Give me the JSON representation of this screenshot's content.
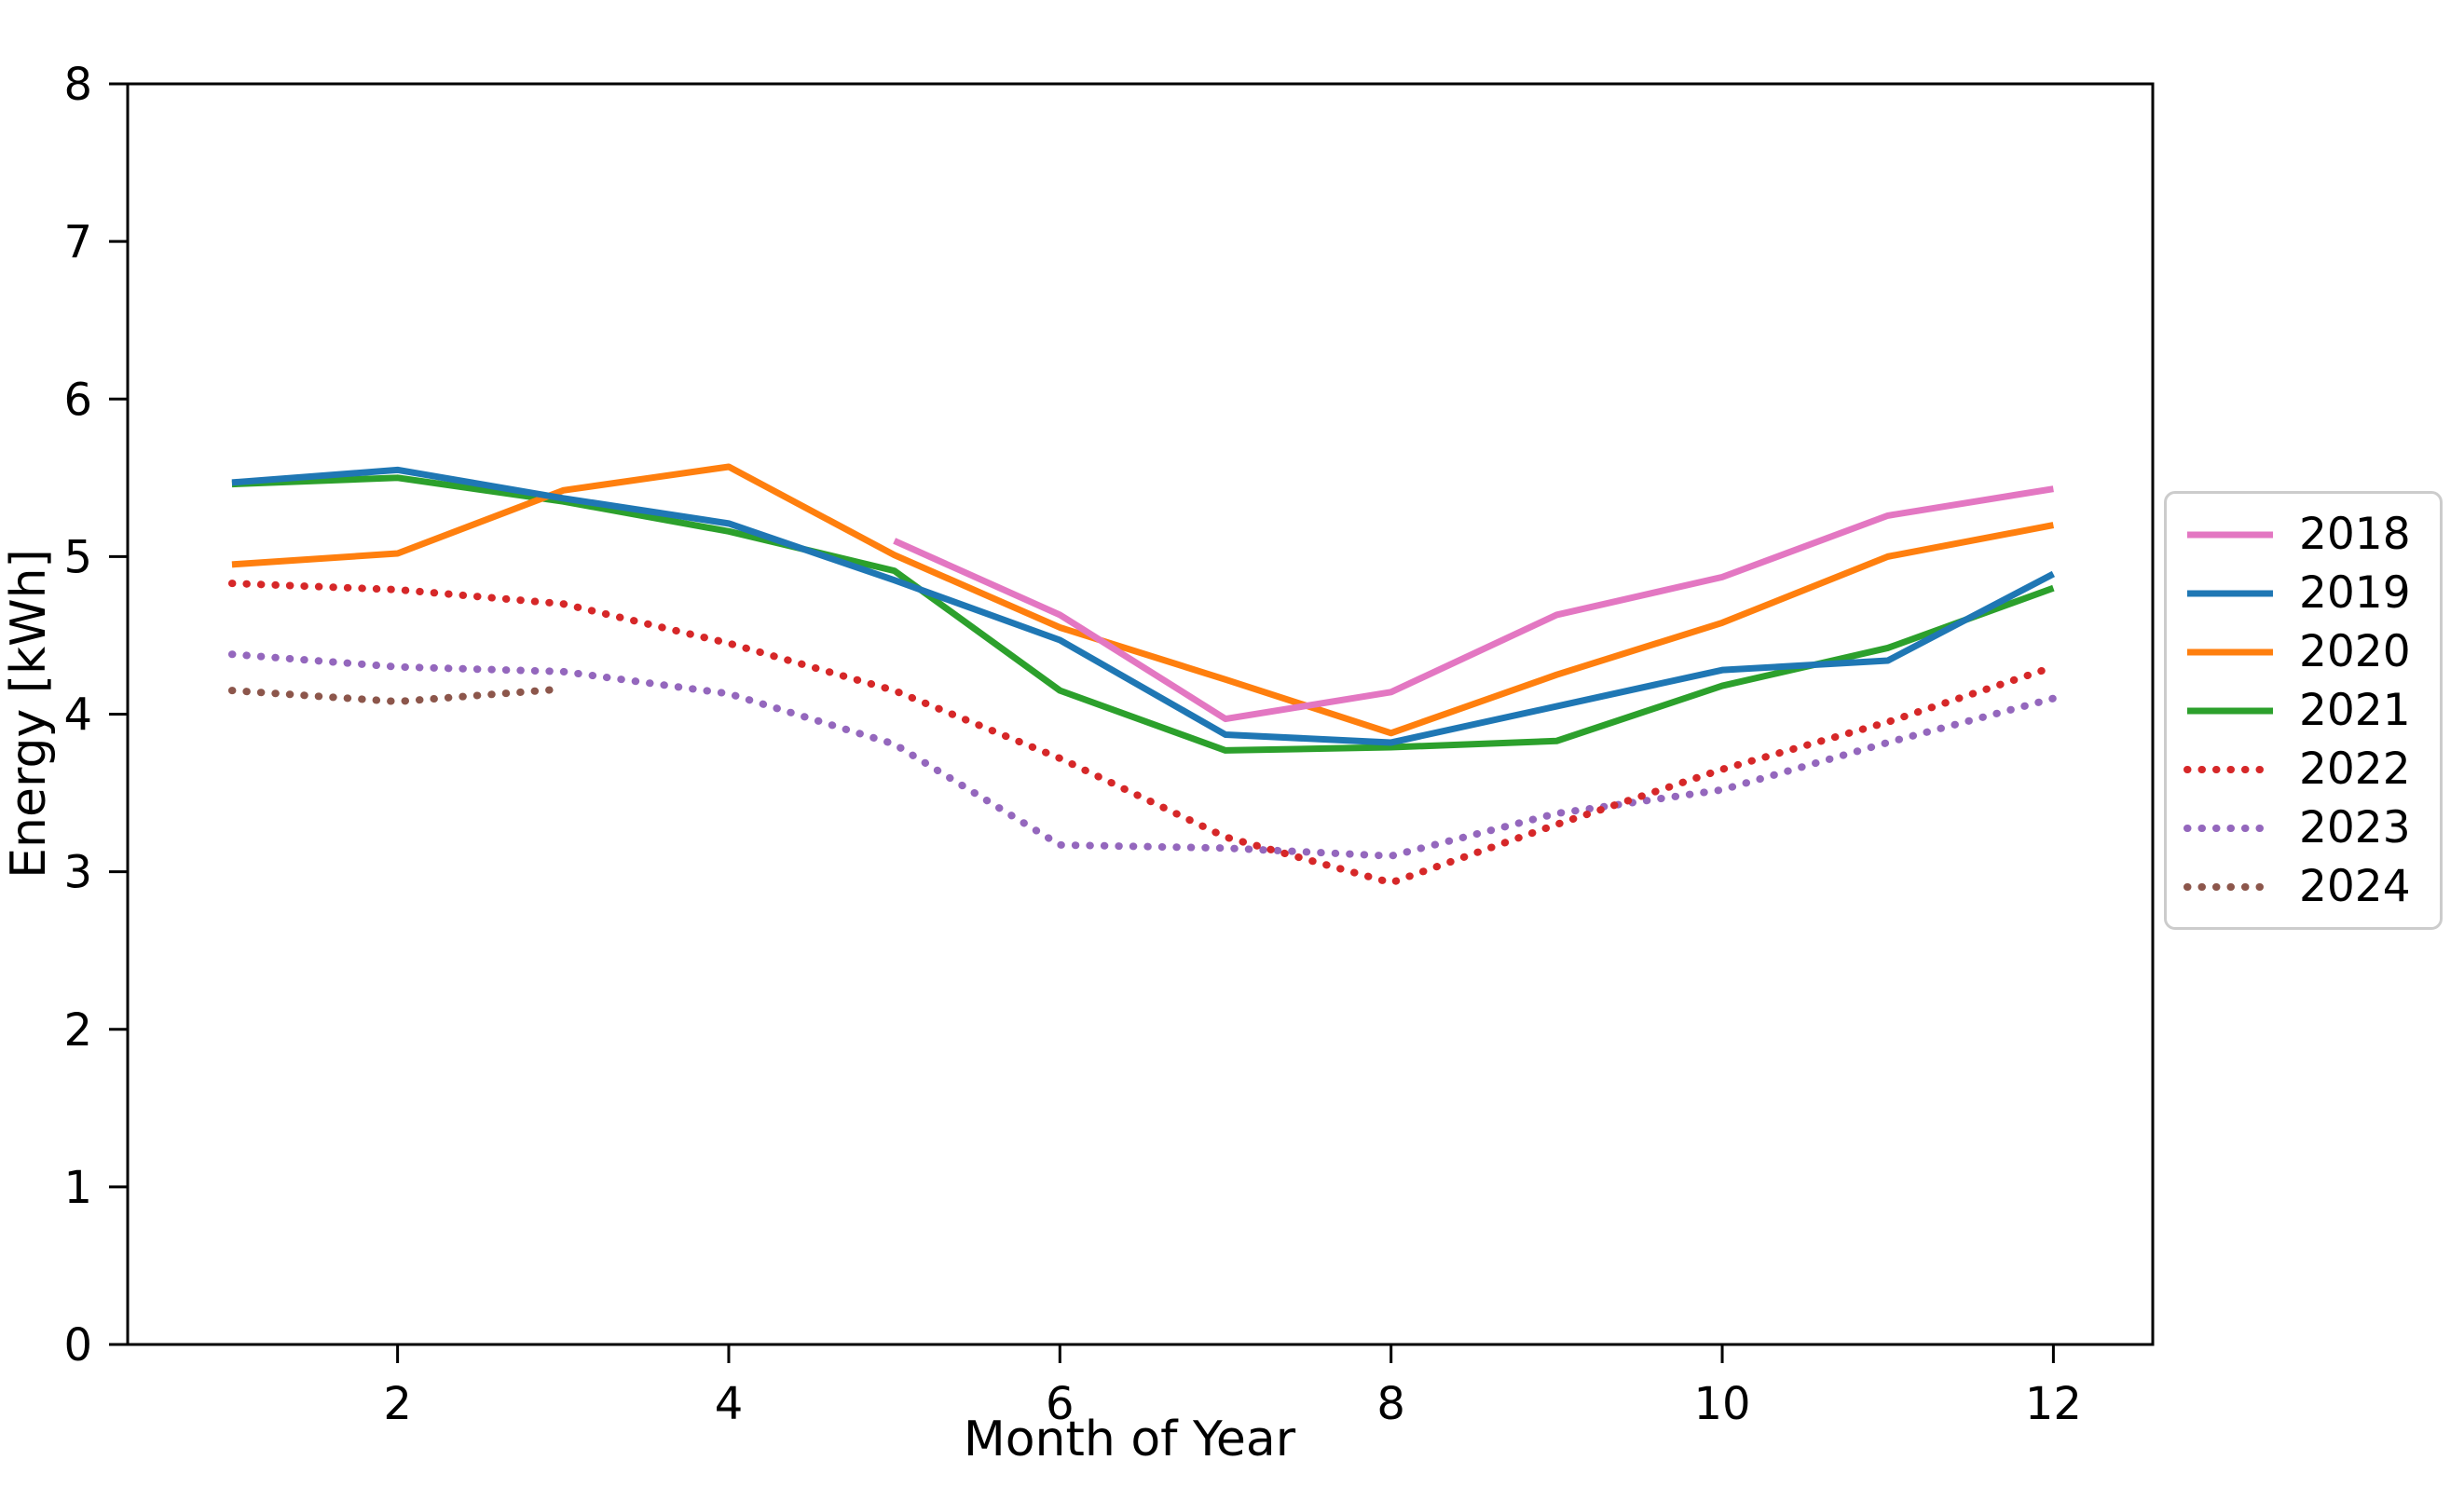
{
  "chart_data": {
    "type": "line",
    "title": "",
    "xlabel": "Month of Year",
    "ylabel": "Energy [kWh]",
    "xlim": [
      0.37,
      12.6
    ],
    "ylim": [
      0,
      8
    ],
    "x_ticks": [
      2,
      4,
      6,
      8,
      10,
      12
    ],
    "y_ticks": [
      0,
      1,
      2,
      3,
      4,
      5,
      6,
      7,
      8
    ],
    "grid": false,
    "legend_position": "outside right, vertically centered",
    "axis_color": "#000000",
    "legend_border_color": "#cccccc",
    "series": [
      {
        "name": "2018",
        "color": "#e377c2",
        "linestyle": "solid",
        "x": [
          5,
          6,
          7,
          8,
          9,
          10,
          11,
          12
        ],
        "values": [
          5.1,
          4.63,
          3.97,
          4.14,
          4.63,
          4.87,
          5.26,
          5.43
        ]
      },
      {
        "name": "2019",
        "color": "#1f77b4",
        "linestyle": "solid",
        "x": [
          1,
          2,
          3,
          4,
          5,
          6,
          7,
          8,
          9,
          10,
          11,
          12
        ],
        "values": [
          5.47,
          5.55,
          5.37,
          5.21,
          4.85,
          4.47,
          3.87,
          3.82,
          4.05,
          4.28,
          4.34,
          4.89
        ]
      },
      {
        "name": "2020",
        "color": "#ff7f0e",
        "linestyle": "solid",
        "x": [
          1,
          2,
          3,
          4,
          5,
          6,
          7,
          8,
          9,
          10,
          11,
          12
        ],
        "values": [
          4.95,
          5.02,
          5.42,
          5.57,
          5.01,
          4.55,
          4.22,
          3.88,
          4.25,
          4.58,
          5.0,
          5.2
        ]
      },
      {
        "name": "2021",
        "color": "#2ca02c",
        "linestyle": "solid",
        "x": [
          1,
          2,
          3,
          4,
          5,
          6,
          7,
          8,
          9,
          10,
          11,
          12
        ],
        "values": [
          5.46,
          5.5,
          5.35,
          5.16,
          4.91,
          4.15,
          3.77,
          3.79,
          3.83,
          4.18,
          4.42,
          4.8
        ]
      },
      {
        "name": "2022",
        "color": "#d62728",
        "linestyle": "dotted",
        "x": [
          1,
          2,
          3,
          4,
          5,
          6,
          7,
          8,
          9,
          10,
          11,
          12
        ],
        "values": [
          4.83,
          4.79,
          4.7,
          4.45,
          4.15,
          3.72,
          3.22,
          2.93,
          3.3,
          3.65,
          3.95,
          4.3
        ]
      },
      {
        "name": "2023",
        "color": "#9467bd",
        "linestyle": "dotted",
        "x": [
          1,
          2,
          3,
          4,
          5,
          6,
          7,
          8,
          9,
          10,
          11,
          12
        ],
        "values": [
          4.38,
          4.3,
          4.27,
          4.13,
          3.81,
          3.17,
          3.15,
          3.1,
          3.37,
          3.52,
          3.82,
          4.1
        ]
      },
      {
        "name": "2024",
        "color": "#8c564b",
        "linestyle": "dotted",
        "x": [
          1,
          2,
          3
        ],
        "values": [
          4.15,
          4.08,
          4.16
        ]
      }
    ]
  }
}
